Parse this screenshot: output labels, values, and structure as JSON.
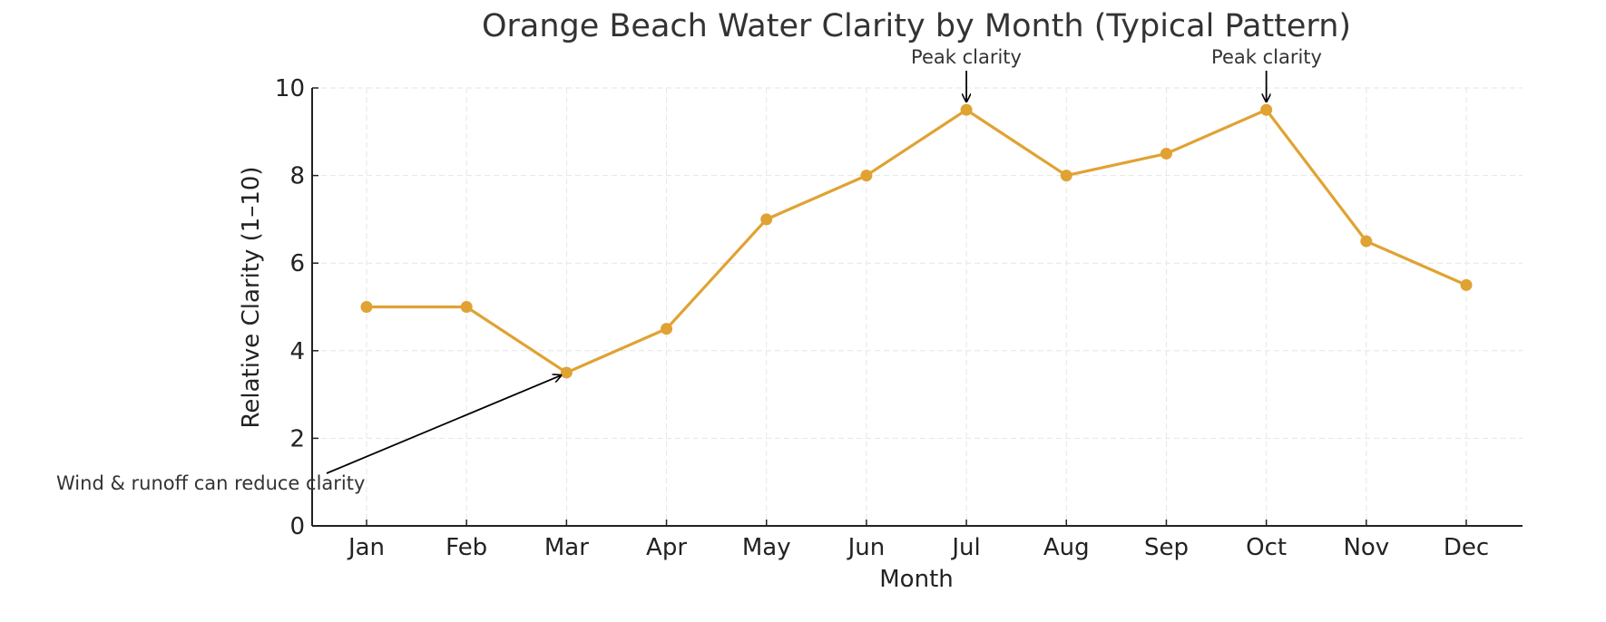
{
  "chart_data": {
    "type": "line",
    "title": "Orange Beach Water Clarity by Month (Typical Pattern)",
    "xlabel": "Month",
    "ylabel": "Relative Clarity (1–10)",
    "categories": [
      "Jan",
      "Feb",
      "Mar",
      "Apr",
      "May",
      "Jun",
      "Jul",
      "Aug",
      "Sep",
      "Oct",
      "Nov",
      "Dec"
    ],
    "values": [
      5,
      5,
      3.5,
      4.5,
      7,
      8,
      9.5,
      8,
      8.5,
      9.5,
      6.5,
      5.5
    ],
    "ylim": [
      0,
      10
    ],
    "yticks": [
      0,
      2,
      4,
      6,
      8,
      10
    ],
    "grid": true,
    "color": "#e0a232",
    "annotations": [
      {
        "text": "Peak clarity",
        "target": "Jul"
      },
      {
        "text": "Peak clarity",
        "target": "Oct"
      },
      {
        "text": "Wind & runoff can reduce clarity",
        "target": "Mar"
      }
    ]
  }
}
